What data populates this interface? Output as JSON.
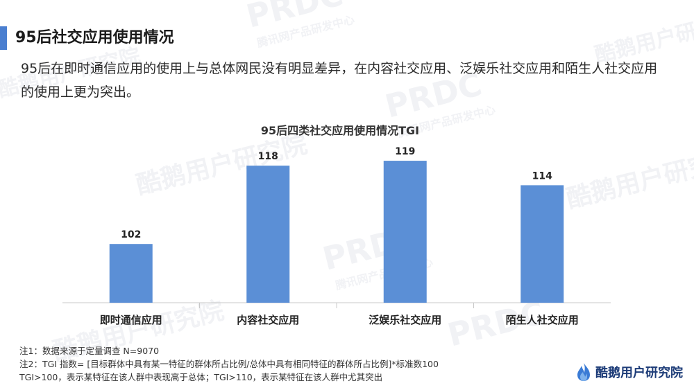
{
  "header": {
    "title": "95后社交应用使用情况",
    "summary": "95后在即时通信应用的使用上与总体网民没有明显差异，在内容社交应用、泛娱乐社交应用和陌生人社交应用的使用上更为突出。"
  },
  "chart_data": {
    "type": "bar",
    "title": "95后四类社交应用使用情况TGI",
    "categories": [
      "即时通信应用",
      "内容社交应用",
      "泛娱乐社交应用",
      "陌生人社交应用"
    ],
    "values": [
      102,
      118,
      119,
      114
    ],
    "ylim": [
      90,
      120
    ],
    "grid": false,
    "bar_color": "#5b8fd6"
  },
  "notes": {
    "line1": "注1：数据来源于定量调查  N=9070",
    "line2": "注2：TGI 指数= [目标群体中具有某一特征的群体所占比例/总体中具有相同特征的群体所占比例]*标准数100",
    "line3": "TGI>100，表示某特征在该人群中表现高于总体；TGI>110，表示某特征在该人群中尤其突出"
  },
  "logo": {
    "text": "酷鹅用户研究院",
    "icon": "flame-logo-icon"
  },
  "watermark": {
    "brand": "酷鹅用户研究院",
    "letters": "PRDC",
    "sub": "腾讯网产品研发中心"
  },
  "colors": {
    "accent": "#4a7fd0",
    "bar": "#5b8fd6",
    "logo_text": "#1d3c78"
  }
}
